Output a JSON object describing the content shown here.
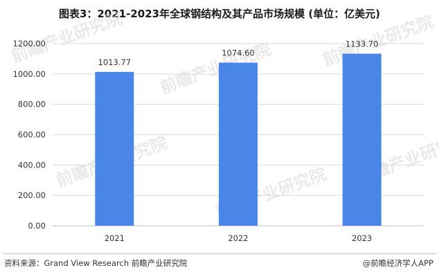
{
  "title": "图表3：2021-2023年全球钢结构及其产品市场规模 (单位：亿美元)",
  "colors": {
    "bar": "#4A86E8",
    "grid": "#d9d9d9",
    "axis": "#bfbfbf",
    "text": "#333333"
  },
  "chart_data": {
    "type": "bar",
    "categories": [
      "2021",
      "2022",
      "2023"
    ],
    "values": [
      1013.77,
      1074.6,
      1133.7
    ],
    "data_labels": [
      "1013.77",
      "1074.60",
      "1133.70"
    ],
    "ylim": [
      0,
      1200
    ],
    "yticks": [
      0,
      200,
      400,
      600,
      800,
      1000,
      1200
    ],
    "ytick_labels": [
      "0.00",
      "200.00",
      "400.00",
      "600.00",
      "800.00",
      "1000.00",
      "1200.00"
    ],
    "grid": true,
    "xlabel": "",
    "ylabel": ""
  },
  "footer": {
    "source": "资料来源：Grand View Research 前瞻产业研究院",
    "brand": "@前瞻经济学人APP"
  },
  "watermark": "前瞻产业研究院"
}
